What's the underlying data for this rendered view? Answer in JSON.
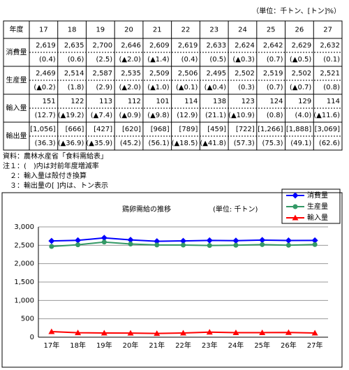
{
  "unit_note": "（単位：千トン、[トン]%）",
  "table": {
    "year_label": "年度",
    "years": [
      "17",
      "18",
      "19",
      "20",
      "21",
      "22",
      "23",
      "24",
      "25",
      "26",
      "27"
    ],
    "rows": [
      {
        "label": "消費量",
        "values": [
          "2,619",
          "2,635",
          "2,700",
          "2,646",
          "2,609",
          "2,619",
          "2,633",
          "2,624",
          "2,642",
          "2,629",
          "2,632"
        ],
        "rates": [
          "(0.4)",
          "(0.6)",
          "(2.5)",
          "(▲2.0)",
          "(▲1.4)",
          "(0.4)",
          "(0.5)",
          "(▲0.3)",
          "(0.7)",
          "(▲0.5)",
          "(0.1)"
        ]
      },
      {
        "label": "生産量",
        "values": [
          "2,469",
          "2,514",
          "2,587",
          "2,535",
          "2,509",
          "2,506",
          "2,495",
          "2,502",
          "2,519",
          "2,502",
          "2,521"
        ],
        "rates": [
          "(▲0.2)",
          "(1.8)",
          "(2.9)",
          "(▲2.0)",
          "(▲1.0)",
          "(▲0.1)",
          "(▲0.4)",
          "(0.3)",
          "(0.7)",
          "(▲0.7)",
          "(0.8)"
        ]
      },
      {
        "label": "輸入量",
        "values": [
          "151",
          "122",
          "113",
          "112",
          "101",
          "114",
          "138",
          "123",
          "124",
          "129",
          "114"
        ],
        "rates": [
          "(12.7)",
          "(▲19.2)",
          "(▲7.4)",
          "(▲0.9)",
          "(▲9.8)",
          "(12.9)",
          "(21.1)",
          "(▲10.9)",
          "(0.8)",
          "(4.0)",
          "(▲11.6)"
        ]
      },
      {
        "label": "輸出量",
        "values": [
          "[1,056]",
          "[666]",
          "[427]",
          "[620]",
          "[968]",
          "[789]",
          "[459]",
          "[722]",
          "[1,266]",
          "[1,888]",
          "[3,069]"
        ],
        "rates": [
          "(36.3)",
          "(▲36.9)",
          "(▲35.9)",
          "(45.2)",
          "(56.1)",
          "(▲18.5)",
          "(▲41.8)",
          "(57.3)",
          "(75.3)",
          "(49.1)",
          "(62.6)"
        ]
      }
    ]
  },
  "notes": [
    "資料：農林水産省「食料需給表」",
    "注１：(　)内は対前年度増減率",
    "　２：輸入量は殻付き換算",
    "　３：輸出量の[ ]内は、トン表示"
  ],
  "chart_data": {
    "type": "line",
    "title": "鶏卵需給の推移",
    "subtitle": "(単位: 千トン)",
    "categories": [
      "17年",
      "18年",
      "19年",
      "20年",
      "21年",
      "22年",
      "23年",
      "24年",
      "25年",
      "26年",
      "27年"
    ],
    "series": [
      {
        "name": "消費量",
        "color": "#0000ff",
        "marker": "diamond",
        "values": [
          2619,
          2635,
          2700,
          2646,
          2609,
          2619,
          2633,
          2624,
          2642,
          2629,
          2632
        ]
      },
      {
        "name": "生産量",
        "color": "#339966",
        "marker": "circle",
        "values": [
          2469,
          2514,
          2587,
          2535,
          2509,
          2506,
          2495,
          2502,
          2519,
          2502,
          2521
        ]
      },
      {
        "name": "輸入量",
        "color": "#ff0000",
        "marker": "triangle",
        "values": [
          151,
          122,
          113,
          112,
          101,
          114,
          138,
          123,
          124,
          129,
          114
        ]
      }
    ],
    "ylim": [
      0,
      3000
    ],
    "yticks": [
      0,
      500,
      {
        "value": 1000,
        "label": "1,000"
      },
      {
        "value": 1500,
        "label": "1,500"
      },
      {
        "value": 2000,
        "label": "2,000"
      },
      {
        "value": 2500,
        "label": "2,500"
      },
      {
        "value": 3000,
        "label": "3,000"
      }
    ],
    "grid": true,
    "legend": "top-right"
  }
}
